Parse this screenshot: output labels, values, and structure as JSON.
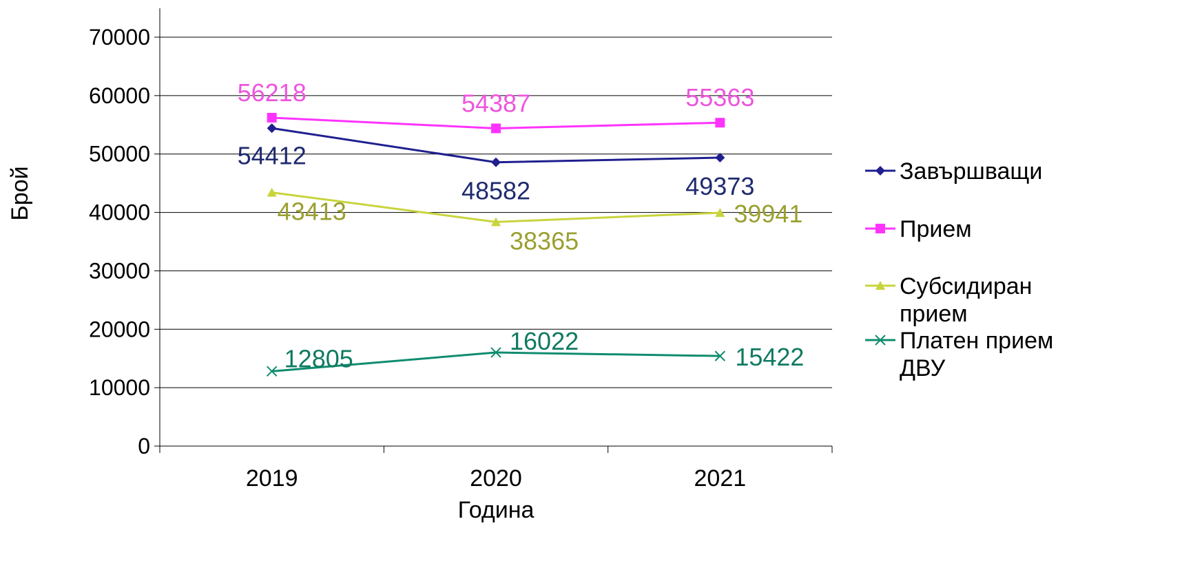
{
  "chart_data": {
    "type": "line",
    "title": "",
    "xlabel": "Година",
    "ylabel": "Брой",
    "categories": [
      "2019",
      "2020",
      "2021"
    ],
    "ylim": [
      0,
      70000
    ],
    "yticks": [
      "0",
      "10000",
      "20000",
      "30000",
      "40000",
      "50000",
      "60000",
      "70000"
    ],
    "grid": true,
    "legend_position": "right",
    "series": [
      {
        "name": "Завършващи",
        "values": [
          54412,
          48582,
          49373
        ],
        "line_color": "#1f1f8f",
        "label_color": "#1f2a6e",
        "marker": "diamond"
      },
      {
        "name": "Прием",
        "values": [
          56218,
          54387,
          55363
        ],
        "line_color": "#ff33ff",
        "label_color": "#ee55dd",
        "marker": "square"
      },
      {
        "name": "Субсидиран прием",
        "legend_lines": [
          "Субсидиран",
          "прием"
        ],
        "values": [
          43413,
          38365,
          39941
        ],
        "line_color": "#c8d43c",
        "label_color": "#9aa030",
        "marker": "triangle"
      },
      {
        "name": "Платен прием ДВУ",
        "legend_lines": [
          "Платен прием",
          "ДВУ"
        ],
        "values": [
          12805,
          16022,
          15422
        ],
        "line_color": "#0f8c6e",
        "label_color": "#0f7a60",
        "marker": "x"
      }
    ]
  }
}
